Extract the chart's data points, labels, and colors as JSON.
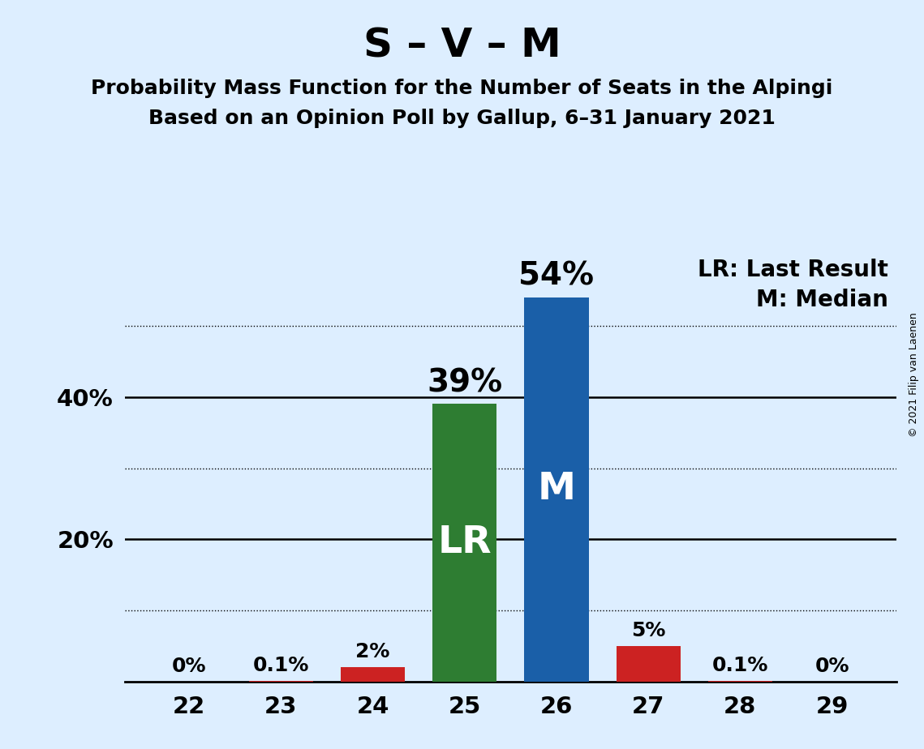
{
  "title": "S – V – M",
  "subtitle1": "Probability Mass Function for the Number of Seats in the Alpingi",
  "subtitle2": "Based on an Opinion Poll by Gallup, 6–31 January 2021",
  "copyright": "© 2021 Filip van Laenen",
  "seats": [
    22,
    23,
    24,
    25,
    26,
    27,
    28,
    29
  ],
  "values": [
    0.0,
    0.1,
    2.0,
    39.0,
    54.0,
    5.0,
    0.1,
    0.0
  ],
  "bar_colors": [
    "#cc2222",
    "#cc2222",
    "#cc2222",
    "#2e7d32",
    "#1a5fa8",
    "#cc2222",
    "#cc2222",
    "#cc2222"
  ],
  "bar_labels": [
    "0%",
    "0.1%",
    "2%",
    "39%",
    "54%",
    "5%",
    "0.1%",
    "0%"
  ],
  "lr_seat": 25,
  "median_seat": 26,
  "background_color": "#ddeeff",
  "bar_width": 0.7,
  "ylim_max": 60,
  "solid_yticks": [
    20,
    40
  ],
  "dotted_yticks": [
    10,
    30,
    50
  ],
  "legend_text1": "LR: Last Result",
  "legend_text2": "M: Median",
  "title_fontsize": 36,
  "subtitle_fontsize": 18,
  "tick_fontsize": 21,
  "bar_label_fontsize_small": 18,
  "bar_label_fontsize_large": 28,
  "inside_label_fontsize": 34,
  "copyright_fontsize": 9,
  "legend_fontsize": 20
}
